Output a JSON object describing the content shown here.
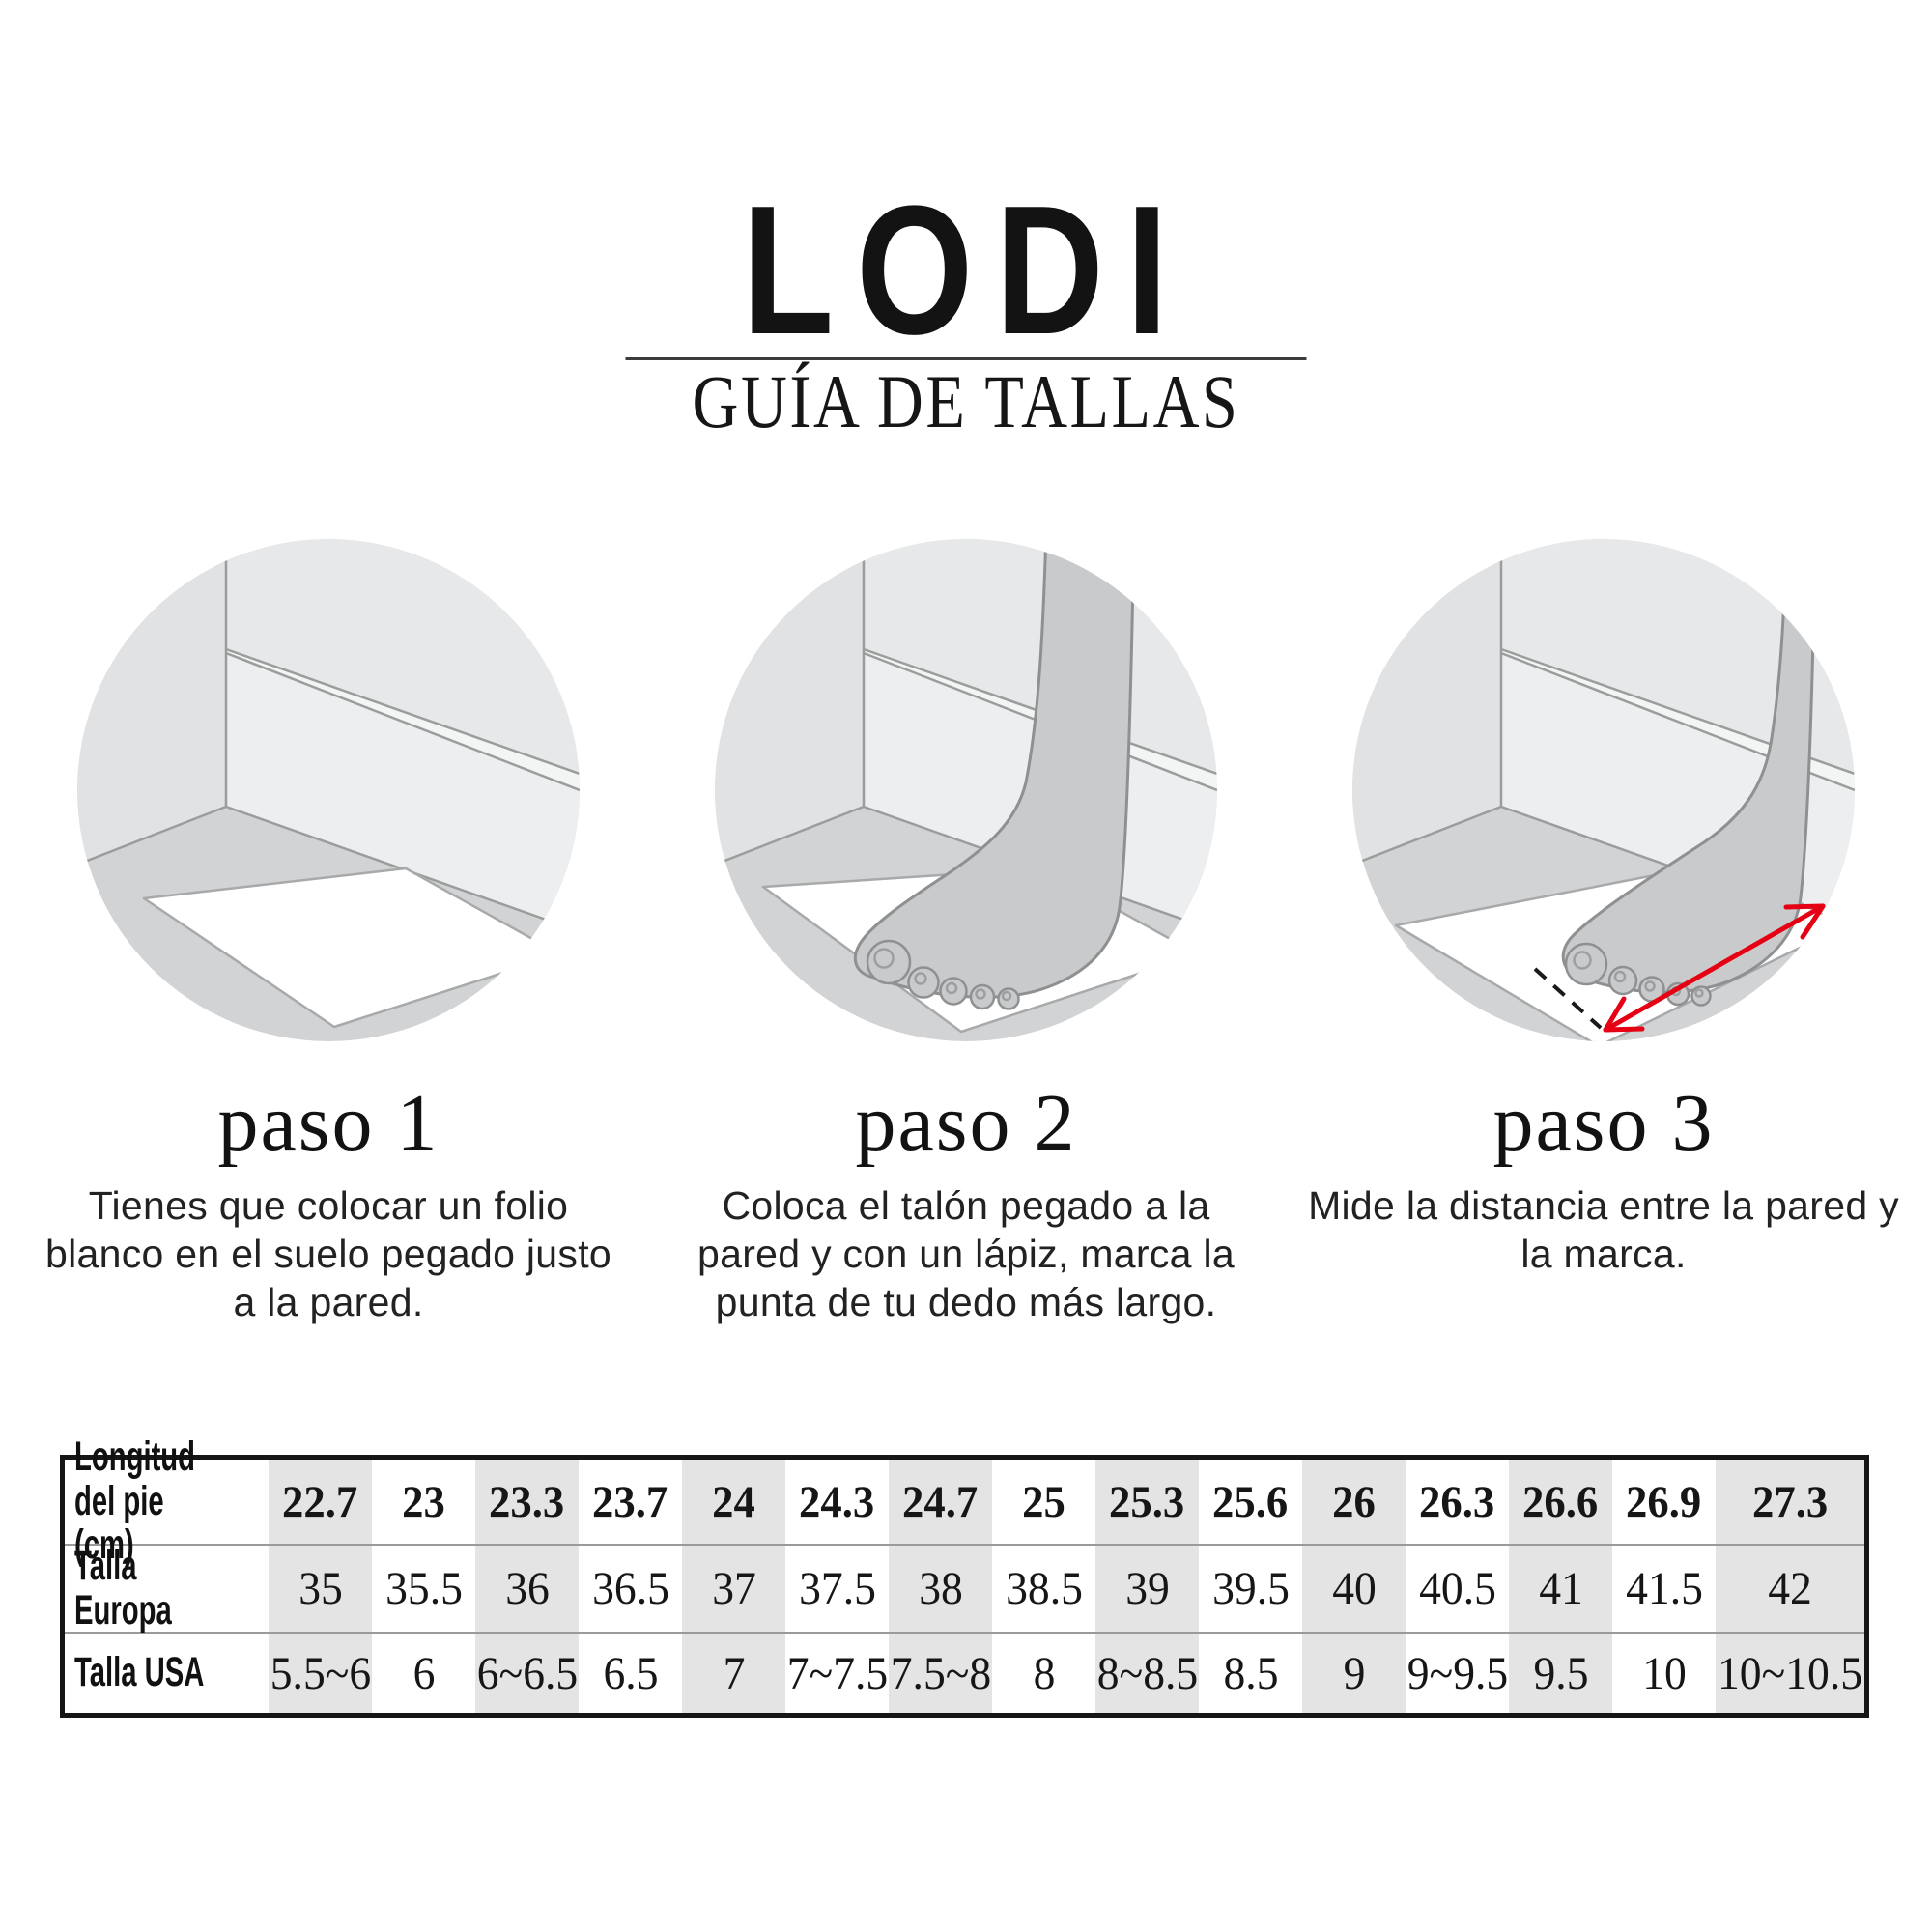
{
  "header": {
    "brand": "LODI",
    "subtitle": "GUÍA DE TALLAS"
  },
  "steps": [
    {
      "title": "paso 1",
      "description": "Tienes que colocar un folio\nblanco en el suelo pegado justo\na la pared.",
      "illustration": "paper-next-to-wall"
    },
    {
      "title": "paso 2",
      "description": "Coloca el talón pegado a la\npared y con un lápiz, marca la\npunta de tu dedo más largo.",
      "illustration": "foot-standing-on-paper"
    },
    {
      "title": "paso 3",
      "description": "Mide la distancia entre la pared y\nla marca.",
      "illustration": "measure-distance-red-arrow"
    }
  ],
  "size_table": {
    "row_headers": [
      "Longitud\ndel pie (cm)",
      "Talla Europa",
      "Talla USA"
    ],
    "columns": [
      {
        "cm": "22.7",
        "eu": "35",
        "us": "5.5~6"
      },
      {
        "cm": "23",
        "eu": "35.5",
        "us": "6"
      },
      {
        "cm": "23.3",
        "eu": "36",
        "us": "6~6.5"
      },
      {
        "cm": "23.7",
        "eu": "36.5",
        "us": "6.5"
      },
      {
        "cm": "24",
        "eu": "37",
        "us": "7"
      },
      {
        "cm": "24.3",
        "eu": "37.5",
        "us": "7~7.5"
      },
      {
        "cm": "24.7",
        "eu": "38",
        "us": "7.5~8"
      },
      {
        "cm": "25",
        "eu": "38.5",
        "us": "8"
      },
      {
        "cm": "25.3",
        "eu": "39",
        "us": "8~8.5"
      },
      {
        "cm": "25.6",
        "eu": "39.5",
        "us": "8.5"
      },
      {
        "cm": "26",
        "eu": "40",
        "us": "9"
      },
      {
        "cm": "26.3",
        "eu": "40.5",
        "us": "9~9.5"
      },
      {
        "cm": "26.6",
        "eu": "41",
        "us": "9.5"
      },
      {
        "cm": "26.9",
        "eu": "41.5",
        "us": "10"
      },
      {
        "cm": "27.3",
        "eu": "42",
        "us": "10~10.5"
      }
    ]
  },
  "colors": {
    "accent_red": "#e60013",
    "table_stripe": "#e4e4e5",
    "floor_gray": "#d2d3d4",
    "wall_gray": "#e7e8e9",
    "foot_gray": "#c9cacb"
  }
}
